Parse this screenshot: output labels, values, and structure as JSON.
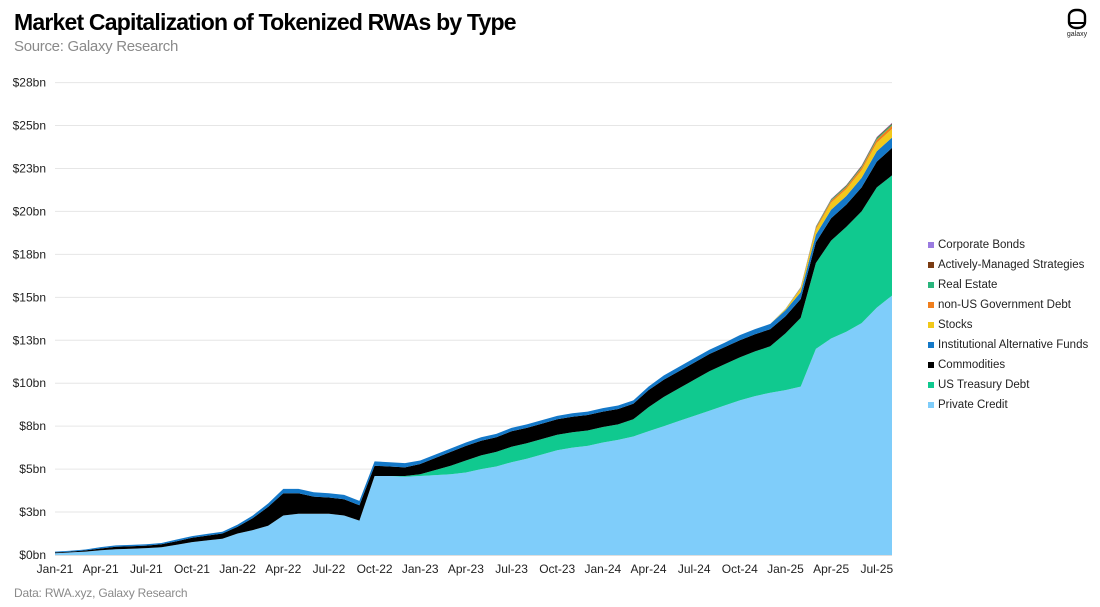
{
  "header": {
    "title": "Market Capitalization of Tokenized RWAs by Type",
    "subtitle": "Source: Galaxy Research"
  },
  "footer": {
    "source": "Data: RWA.xyz, Galaxy Research"
  },
  "logo": {
    "icon": "galaxy-logo-icon",
    "text": "galaxy"
  },
  "chart_data": {
    "type": "area",
    "stacked": true,
    "grid": true,
    "legend_position": "right",
    "y_unit": "USD billions",
    "ylim": [
      0,
      28
    ],
    "ytick_values": [
      0,
      2.5,
      5,
      7.5,
      10,
      12.5,
      15,
      17.5,
      20,
      22.5,
      25,
      27.5
    ],
    "ytick_labels": [
      "$0bn",
      "$3bn",
      "$5bn",
      "$8bn",
      "$10bn",
      "$13bn",
      "$15bn",
      "$18bn",
      "$20bn",
      "$23bn",
      "$25bn",
      "$28bn"
    ],
    "xtick_labels": [
      "Jan-21",
      "Apr-21",
      "Jul-21",
      "Oct-21",
      "Jan-22",
      "Apr-22",
      "Jul-22",
      "Oct-22",
      "Jan-23",
      "Apr-23",
      "Jul-23",
      "Oct-23",
      "Jan-24",
      "Apr-24",
      "Jul-24",
      "Oct-24",
      "Jan-25",
      "Apr-25",
      "Jul-25"
    ],
    "x_start": "2021-01",
    "x_end": "2025-08",
    "x": [
      "2021-01",
      "2021-02",
      "2021-03",
      "2021-04",
      "2021-05",
      "2021-06",
      "2021-07",
      "2021-08",
      "2021-09",
      "2021-10",
      "2021-11",
      "2021-12",
      "2022-01",
      "2022-02",
      "2022-03",
      "2022-04",
      "2022-05",
      "2022-06",
      "2022-07",
      "2022-08",
      "2022-09",
      "2022-10",
      "2022-11",
      "2022-12",
      "2023-01",
      "2023-02",
      "2023-03",
      "2023-04",
      "2023-05",
      "2023-06",
      "2023-07",
      "2023-08",
      "2023-09",
      "2023-10",
      "2023-11",
      "2023-12",
      "2024-01",
      "2024-02",
      "2024-03",
      "2024-04",
      "2024-05",
      "2024-06",
      "2024-07",
      "2024-08",
      "2024-09",
      "2024-10",
      "2024-11",
      "2024-12",
      "2025-01",
      "2025-02",
      "2025-03",
      "2025-04",
      "2025-05",
      "2025-06",
      "2025-07",
      "2025-08"
    ],
    "series": [
      {
        "name": "Private Credit",
        "color": "#7fcdfa",
        "values": [
          0.1,
          0.15,
          0.2,
          0.28,
          0.33,
          0.36,
          0.4,
          0.45,
          0.6,
          0.75,
          0.85,
          0.95,
          1.25,
          1.45,
          1.7,
          2.3,
          2.4,
          2.4,
          2.4,
          2.3,
          2.0,
          4.6,
          4.6,
          4.55,
          4.6,
          4.65,
          4.7,
          4.8,
          5.0,
          5.15,
          5.4,
          5.6,
          5.85,
          6.1,
          6.25,
          6.35,
          6.55,
          6.7,
          6.9,
          7.2,
          7.5,
          7.8,
          8.1,
          8.4,
          8.7,
          9.0,
          9.25,
          9.45,
          9.6,
          9.8,
          12.0,
          12.6,
          13.0,
          13.5,
          14.4,
          15.1
        ]
      },
      {
        "name": "US Treasury Debt",
        "color": "#10c98f",
        "values": [
          0,
          0,
          0,
          0,
          0,
          0,
          0,
          0,
          0,
          0,
          0,
          0,
          0,
          0,
          0,
          0,
          0,
          0,
          0,
          0,
          0,
          0,
          0,
          0.05,
          0.1,
          0.3,
          0.5,
          0.7,
          0.8,
          0.85,
          0.9,
          0.9,
          0.9,
          0.9,
          0.9,
          0.9,
          0.9,
          0.9,
          1.0,
          1.4,
          1.7,
          1.9,
          2.1,
          2.3,
          2.4,
          2.5,
          2.6,
          2.7,
          3.3,
          4.0,
          5.0,
          5.7,
          6.1,
          6.5,
          7.0,
          7.0
        ]
      },
      {
        "name": "Commodities",
        "color": "#000000",
        "values": [
          0.05,
          0.05,
          0.07,
          0.1,
          0.15,
          0.15,
          0.15,
          0.17,
          0.2,
          0.25,
          0.28,
          0.3,
          0.4,
          0.7,
          1.1,
          1.3,
          1.2,
          1.0,
          0.95,
          0.95,
          0.9,
          0.6,
          0.55,
          0.5,
          0.6,
          0.7,
          0.8,
          0.85,
          0.85,
          0.85,
          0.9,
          0.9,
          0.9,
          0.9,
          0.9,
          0.9,
          0.9,
          0.9,
          0.9,
          1.0,
          1.0,
          1.0,
          1.0,
          1.0,
          1.0,
          1.0,
          1.0,
          1.0,
          1.0,
          1.1,
          1.2,
          1.3,
          1.3,
          1.4,
          1.5,
          1.6
        ]
      },
      {
        "name": "Institutional Alternative Funds",
        "color": "#1478c8",
        "values": [
          0.05,
          0.05,
          0.05,
          0.08,
          0.08,
          0.08,
          0.08,
          0.08,
          0.1,
          0.1,
          0.1,
          0.1,
          0.12,
          0.15,
          0.2,
          0.25,
          0.25,
          0.25,
          0.25,
          0.25,
          0.25,
          0.25,
          0.25,
          0.25,
          0.2,
          0.2,
          0.2,
          0.2,
          0.2,
          0.2,
          0.2,
          0.2,
          0.2,
          0.2,
          0.2,
          0.2,
          0.2,
          0.2,
          0.2,
          0.2,
          0.25,
          0.25,
          0.25,
          0.25,
          0.25,
          0.3,
          0.3,
          0.3,
          0.35,
          0.4,
          0.45,
          0.5,
          0.5,
          0.55,
          0.6,
          0.6
        ]
      },
      {
        "name": "Stocks",
        "color": "#f2c81a",
        "values": [
          0,
          0,
          0,
          0,
          0,
          0,
          0,
          0,
          0,
          0,
          0,
          0,
          0,
          0,
          0,
          0,
          0,
          0,
          0,
          0,
          0,
          0,
          0,
          0,
          0,
          0,
          0,
          0,
          0,
          0,
          0,
          0,
          0,
          0,
          0,
          0,
          0,
          0,
          0,
          0,
          0,
          0,
          0,
          0,
          0,
          0,
          0,
          0,
          0.05,
          0.2,
          0.3,
          0.4,
          0.4,
          0.45,
          0.5,
          0.5
        ]
      },
      {
        "name": "non-US Government Debt",
        "color": "#f07f1e",
        "values": [
          0,
          0,
          0,
          0,
          0,
          0,
          0,
          0,
          0,
          0,
          0,
          0,
          0,
          0,
          0,
          0,
          0,
          0,
          0,
          0,
          0,
          0,
          0,
          0,
          0,
          0,
          0,
          0,
          0,
          0,
          0,
          0,
          0,
          0,
          0,
          0,
          0,
          0,
          0,
          0,
          0,
          0,
          0,
          0,
          0,
          0,
          0,
          0,
          0.02,
          0.05,
          0.1,
          0.12,
          0.12,
          0.15,
          0.18,
          0.2
        ]
      },
      {
        "name": "Real Estate",
        "color": "#2ab57d",
        "values": [
          0,
          0,
          0,
          0,
          0,
          0,
          0,
          0,
          0,
          0,
          0,
          0,
          0,
          0,
          0,
          0,
          0,
          0,
          0,
          0,
          0,
          0,
          0,
          0,
          0,
          0,
          0,
          0,
          0,
          0,
          0,
          0,
          0,
          0,
          0,
          0,
          0,
          0,
          0,
          0,
          0,
          0,
          0,
          0,
          0,
          0,
          0,
          0,
          0.02,
          0.03,
          0.05,
          0.06,
          0.06,
          0.06,
          0.08,
          0.08
        ]
      },
      {
        "name": "Actively-Managed Strategies",
        "color": "#7a3b12",
        "values": [
          0,
          0,
          0,
          0,
          0,
          0,
          0,
          0,
          0,
          0,
          0,
          0,
          0,
          0,
          0,
          0,
          0,
          0,
          0,
          0,
          0,
          0,
          0,
          0,
          0,
          0,
          0,
          0,
          0,
          0,
          0,
          0,
          0,
          0,
          0,
          0,
          0,
          0,
          0,
          0,
          0,
          0,
          0,
          0,
          0,
          0,
          0,
          0,
          0,
          0.01,
          0.02,
          0.03,
          0.04,
          0.05,
          0.05,
          0.05
        ]
      },
      {
        "name": "Corporate Bonds",
        "color": "#9a7be0",
        "values": [
          0,
          0,
          0,
          0,
          0,
          0,
          0,
          0,
          0,
          0,
          0,
          0,
          0,
          0,
          0,
          0,
          0,
          0,
          0,
          0,
          0,
          0,
          0,
          0,
          0,
          0,
          0,
          0,
          0,
          0,
          0,
          0,
          0,
          0,
          0,
          0,
          0,
          0,
          0,
          0,
          0,
          0,
          0,
          0,
          0,
          0,
          0,
          0,
          0,
          0.01,
          0.01,
          0.02,
          0.02,
          0.02,
          0.03,
          0.03
        ]
      }
    ],
    "legend_order": [
      "Corporate Bonds",
      "Actively-Managed Strategies",
      "Real Estate",
      "non-US Government Debt",
      "Stocks",
      "Institutional Alternative Funds",
      "Commodities",
      "US Treasury Debt",
      "Private Credit"
    ]
  }
}
